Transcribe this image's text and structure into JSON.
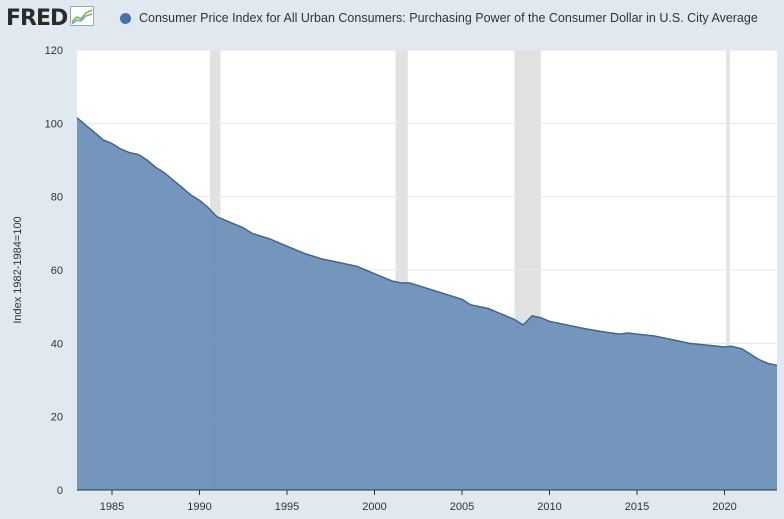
{
  "logo": {
    "text": "FRED",
    "icon": "fred-chart-icon"
  },
  "legend": {
    "label": "Consumer Price Index for All Urban Consumers: Purchasing Power of the Consumer Dollar in U.S. City Average",
    "color": "#4572a7"
  },
  "colors": {
    "area_fill": "#6f93bb",
    "line": "#3d6693",
    "recession": "#e1e1e1",
    "plot_bg": "#ffffff",
    "grid": "#e6e6e6",
    "background": "#e1e9f0"
  },
  "chart_data": {
    "type": "area",
    "title": "",
    "xlabel": "",
    "ylabel": "Index 1982-1984=100",
    "xlim": [
      1983.0,
      2023.0
    ],
    "ylim": [
      0,
      120
    ],
    "grid": true,
    "legend_position": "top",
    "x_ticks": [
      "1985",
      "1990",
      "1995",
      "2000",
      "2005",
      "2010",
      "2015",
      "2020"
    ],
    "y_ticks": [
      "0",
      "20",
      "40",
      "60",
      "80",
      "100",
      "120"
    ],
    "recessions": [
      [
        1990.6,
        1991.2
      ],
      [
        2001.2,
        2001.9
      ],
      [
        2008.0,
        2009.5
      ],
      [
        2020.1,
        2020.3
      ]
    ],
    "series": [
      {
        "name": "Consumer Price Index for All Urban Consumers: Purchasing Power of the Consumer Dollar in U.S. City Average",
        "x": [
          1983.0,
          1983.5,
          1984.0,
          1984.5,
          1985.0,
          1985.5,
          1986.0,
          1986.5,
          1987.0,
          1987.5,
          1988.0,
          1988.5,
          1989.0,
          1989.5,
          1990.0,
          1990.5,
          1991.0,
          1991.5,
          1992.0,
          1992.5,
          1993.0,
          1994.0,
          1995.0,
          1996.0,
          1997.0,
          1998.0,
          1999.0,
          2000.0,
          2001.0,
          2001.5,
          2002.0,
          2003.0,
          2004.0,
          2005.0,
          2005.5,
          2006.0,
          2006.5,
          2007.0,
          2007.5,
          2008.0,
          2008.5,
          2008.8,
          2009.0,
          2009.5,
          2010.0,
          2011.0,
          2012.0,
          2013.0,
          2014.0,
          2014.5,
          2015.0,
          2016.0,
          2017.0,
          2018.0,
          2019.0,
          2020.0,
          2020.4,
          2021.0,
          2021.5,
          2022.0,
          2022.5,
          2023.0
        ],
        "y": [
          101.5,
          99.5,
          97.5,
          95.5,
          94.5,
          93.0,
          92.0,
          91.5,
          90.0,
          88.0,
          86.5,
          84.5,
          82.5,
          80.5,
          79.0,
          77.0,
          74.5,
          73.5,
          72.5,
          71.5,
          70.0,
          68.5,
          66.5,
          64.5,
          63.0,
          62.0,
          61.0,
          59.0,
          57.0,
          56.5,
          56.5,
          55.0,
          53.5,
          52.0,
          50.5,
          50.0,
          49.5,
          48.5,
          47.5,
          46.5,
          45.0,
          46.5,
          47.5,
          47.0,
          46.0,
          45.0,
          44.0,
          43.2,
          42.5,
          42.8,
          42.5,
          42.0,
          41.0,
          40.0,
          39.5,
          39.0,
          39.2,
          38.5,
          37.0,
          35.5,
          34.5,
          34.0
        ]
      }
    ]
  }
}
